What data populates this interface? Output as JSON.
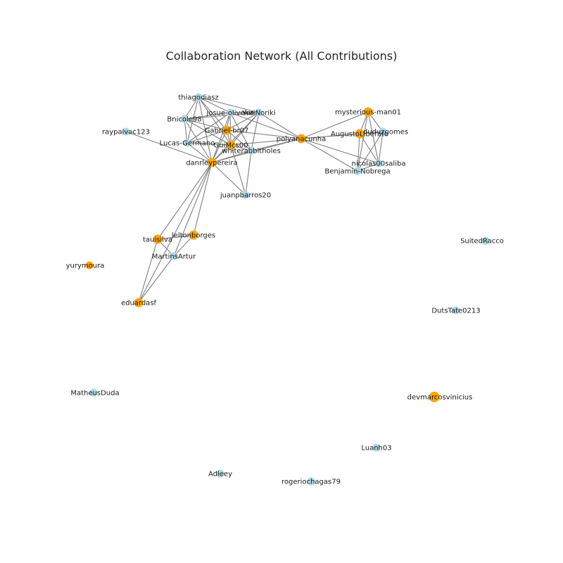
{
  "chart_data": {
    "type": "network",
    "title": "Collaboration Network (All Contributions)",
    "colors": {
      "orange": "#ffa500",
      "blue": "#add8e6",
      "edge": "#808080"
    },
    "nodes": [
      {
        "id": "thiagodiasz",
        "group": "blue"
      },
      {
        "id": "josue-oliveira",
        "group": "blue"
      },
      {
        "id": "YuriNoriki",
        "group": "blue"
      },
      {
        "id": "Bnicole98",
        "group": "blue"
      },
      {
        "id": "Gabriel-br07",
        "group": "orange"
      },
      {
        "id": "raypaivac123",
        "group": "blue"
      },
      {
        "id": "Lucas-Germano",
        "group": "blue"
      },
      {
        "id": "GuiMcs00",
        "group": "orange"
      },
      {
        "id": "whiterabbitholes",
        "group": "blue"
      },
      {
        "id": "danrleypereira",
        "group": "orange"
      },
      {
        "id": "polyanacunha",
        "group": "orange"
      },
      {
        "id": "mysterious-man01",
        "group": "orange"
      },
      {
        "id": "AugustoLiberato",
        "group": "orange"
      },
      {
        "id": "duduzgomes",
        "group": "blue"
      },
      {
        "id": "nicolas00saliba",
        "group": "blue"
      },
      {
        "id": "Benjamin-Nobrega",
        "group": "blue"
      },
      {
        "id": "juanpbarros20",
        "group": "blue"
      },
      {
        "id": "leltonborges",
        "group": "orange"
      },
      {
        "id": "tauisilva",
        "group": "orange"
      },
      {
        "id": "MartinsArtur",
        "group": "blue"
      },
      {
        "id": "yurymoura",
        "group": "orange"
      },
      {
        "id": "eduardasf",
        "group": "orange"
      },
      {
        "id": "SuitedRacco",
        "group": "blue"
      },
      {
        "id": "DutsTate0213",
        "group": "blue"
      },
      {
        "id": "MatheusDuda",
        "group": "blue"
      },
      {
        "id": "devmarcosvinicius",
        "group": "orange"
      },
      {
        "id": "Luanh03",
        "group": "blue"
      },
      {
        "id": "Adleey",
        "group": "blue"
      },
      {
        "id": "rogeriochagas79",
        "group": "blue"
      }
    ],
    "edges": [
      [
        "thiagodiasz",
        "josue-oliveira"
      ],
      [
        "thiagodiasz",
        "YuriNoriki"
      ],
      [
        "thiagodiasz",
        "Bnicole98"
      ],
      [
        "thiagodiasz",
        "Gabriel-br07"
      ],
      [
        "thiagodiasz",
        "GuiMcs00"
      ],
      [
        "thiagodiasz",
        "danrleypereira"
      ],
      [
        "thiagodiasz",
        "Lucas-Germano"
      ],
      [
        "josue-oliveira",
        "YuriNoriki"
      ],
      [
        "josue-oliveira",
        "Bnicole98"
      ],
      [
        "josue-oliveira",
        "Gabriel-br07"
      ],
      [
        "josue-oliveira",
        "GuiMcs00"
      ],
      [
        "josue-oliveira",
        "danrleypereira"
      ],
      [
        "josue-oliveira",
        "whiterabbitholes"
      ],
      [
        "josue-oliveira",
        "polyanacunha"
      ],
      [
        "josue-oliveira",
        "Lucas-Germano"
      ],
      [
        "YuriNoriki",
        "Gabriel-br07"
      ],
      [
        "YuriNoriki",
        "GuiMcs00"
      ],
      [
        "YuriNoriki",
        "danrleypereira"
      ],
      [
        "YuriNoriki",
        "whiterabbitholes"
      ],
      [
        "YuriNoriki",
        "polyanacunha"
      ],
      [
        "YuriNoriki",
        "Bnicole98"
      ],
      [
        "Bnicole98",
        "Gabriel-br07"
      ],
      [
        "Bnicole98",
        "Lucas-Germano"
      ],
      [
        "Bnicole98",
        "GuiMcs00"
      ],
      [
        "Bnicole98",
        "danrleypereira"
      ],
      [
        "Gabriel-br07",
        "Lucas-Germano"
      ],
      [
        "Gabriel-br07",
        "GuiMcs00"
      ],
      [
        "Gabriel-br07",
        "danrleypereira"
      ],
      [
        "Gabriel-br07",
        "whiterabbitholes"
      ],
      [
        "Gabriel-br07",
        "polyanacunha"
      ],
      [
        "raypaivac123",
        "danrleypereira"
      ],
      [
        "Lucas-Germano",
        "GuiMcs00"
      ],
      [
        "Lucas-Germano",
        "danrleypereira"
      ],
      [
        "GuiMcs00",
        "danrleypereira"
      ],
      [
        "GuiMcs00",
        "whiterabbitholes"
      ],
      [
        "GuiMcs00",
        "polyanacunha"
      ],
      [
        "GuiMcs00",
        "juanpbarros20"
      ],
      [
        "whiterabbitholes",
        "danrleypereira"
      ],
      [
        "whiterabbitholes",
        "juanpbarros20"
      ],
      [
        "whiterabbitholes",
        "polyanacunha"
      ],
      [
        "danrleypereira",
        "polyanacunha"
      ],
      [
        "danrleypereira",
        "juanpbarros20"
      ],
      [
        "danrleypereira",
        "leltonborges"
      ],
      [
        "danrleypereira",
        "tauisilva"
      ],
      [
        "danrleypereira",
        "MartinsArtur"
      ],
      [
        "danrleypereira",
        "eduardasf"
      ],
      [
        "polyanacunha",
        "mysterious-man01"
      ],
      [
        "polyanacunha",
        "AugustoLiberato"
      ],
      [
        "polyanacunha",
        "duduzgomes"
      ],
      [
        "polyanacunha",
        "nicolas00saliba"
      ],
      [
        "polyanacunha",
        "Benjamin-Nobrega"
      ],
      [
        "mysterious-man01",
        "AugustoLiberato"
      ],
      [
        "mysterious-man01",
        "duduzgomes"
      ],
      [
        "mysterious-man01",
        "nicolas00saliba"
      ],
      [
        "mysterious-man01",
        "Benjamin-Nobrega"
      ],
      [
        "AugustoLiberato",
        "duduzgomes"
      ],
      [
        "AugustoLiberato",
        "nicolas00saliba"
      ],
      [
        "AugustoLiberato",
        "Benjamin-Nobrega"
      ],
      [
        "duduzgomes",
        "nicolas00saliba"
      ],
      [
        "duduzgomes",
        "Benjamin-Nobrega"
      ],
      [
        "nicolas00saliba",
        "Benjamin-Nobrega"
      ],
      [
        "leltonborges",
        "tauisilva"
      ],
      [
        "leltonborges",
        "MartinsArtur"
      ],
      [
        "tauisilva",
        "MartinsArtur"
      ],
      [
        "tauisilva",
        "eduardasf"
      ],
      [
        "MartinsArtur",
        "eduardasf"
      ]
    ]
  }
}
